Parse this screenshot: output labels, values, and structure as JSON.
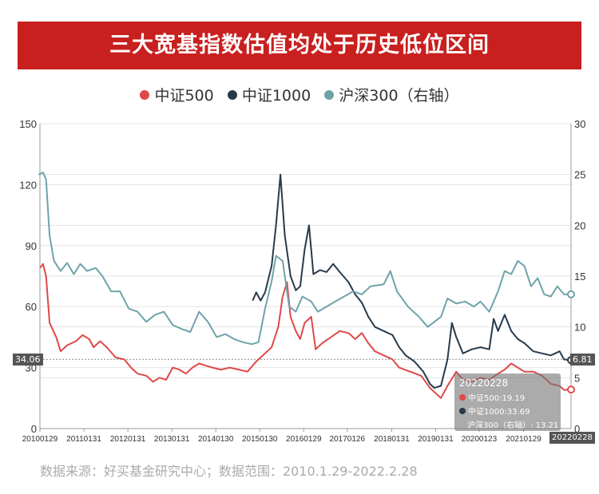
{
  "title": "三大宽基指数估值均处于历史低位区间",
  "source": "数据来源：好买基金研究中心；数据范围：2010.1.29-2022.2.28",
  "colors": {
    "banner": "#c8201f",
    "s1": "#e04848",
    "s2": "#273a4c",
    "s3": "#6ea3aa"
  },
  "tooltip": {
    "date": "20220228",
    "rows": [
      {
        "text": "中证500:19.19",
        "color": "#e04848"
      },
      {
        "text": "中证1000:33.69",
        "color": "#273a4c"
      },
      {
        "text": "沪深300（右轴）: 13.21",
        "color": ""
      }
    ]
  },
  "markers": {
    "left_value": "34.06",
    "right_value": "6.81",
    "x_value": "20220228"
  },
  "chart_data": {
    "type": "line",
    "x_ticks": [
      "20100129",
      "20110131",
      "20120131",
      "20130131",
      "20140130",
      "20150130",
      "20160129",
      "20170126",
      "20180131",
      "20190131",
      "20200123",
      "20210129"
    ],
    "y_left": {
      "min": 0,
      "max": 150,
      "ticks": [
        0,
        30,
        60,
        90,
        120,
        150
      ]
    },
    "y_right": {
      "min": 0,
      "max": 30,
      "ticks": [
        0,
        5,
        10,
        15,
        20,
        25,
        30
      ]
    },
    "grid": true,
    "legend_position": "top-center",
    "series": [
      {
        "name": "中证500",
        "axis": "left",
        "color": "#e04848",
        "points": [
          [
            2010.08,
            79
          ],
          [
            2010.15,
            81
          ],
          [
            2010.22,
            75
          ],
          [
            2010.3,
            52
          ],
          [
            2010.45,
            45
          ],
          [
            2010.55,
            38
          ],
          [
            2010.7,
            41
          ],
          [
            2010.9,
            43
          ],
          [
            2011.05,
            46
          ],
          [
            2011.2,
            44
          ],
          [
            2011.3,
            40
          ],
          [
            2011.45,
            43
          ],
          [
            2011.6,
            40
          ],
          [
            2011.8,
            35
          ],
          [
            2012.0,
            34
          ],
          [
            2012.15,
            30
          ],
          [
            2012.3,
            27
          ],
          [
            2012.5,
            26
          ],
          [
            2012.65,
            23
          ],
          [
            2012.8,
            25
          ],
          [
            2012.95,
            24
          ],
          [
            2013.1,
            30
          ],
          [
            2013.25,
            29
          ],
          [
            2013.4,
            27
          ],
          [
            2013.55,
            30
          ],
          [
            2013.7,
            32
          ],
          [
            2013.85,
            31
          ],
          [
            2014.0,
            30
          ],
          [
            2014.2,
            29
          ],
          [
            2014.4,
            30
          ],
          [
            2014.6,
            29
          ],
          [
            2014.8,
            28
          ],
          [
            2015.0,
            33
          ],
          [
            2015.2,
            37
          ],
          [
            2015.35,
            40
          ],
          [
            2015.5,
            50
          ],
          [
            2015.6,
            65
          ],
          [
            2015.7,
            72
          ],
          [
            2015.78,
            55
          ],
          [
            2015.9,
            48
          ],
          [
            2016.0,
            44
          ],
          [
            2016.1,
            52
          ],
          [
            2016.25,
            55
          ],
          [
            2016.35,
            39
          ],
          [
            2016.5,
            42
          ],
          [
            2016.7,
            45
          ],
          [
            2016.9,
            48
          ],
          [
            2017.1,
            47
          ],
          [
            2017.25,
            44
          ],
          [
            2017.4,
            47
          ],
          [
            2017.55,
            42
          ],
          [
            2017.7,
            38
          ],
          [
            2017.9,
            36
          ],
          [
            2018.1,
            34
          ],
          [
            2018.25,
            30
          ],
          [
            2018.5,
            28
          ],
          [
            2018.75,
            26
          ],
          [
            2018.95,
            20
          ],
          [
            2019.05,
            18
          ],
          [
            2019.2,
            15
          ],
          [
            2019.35,
            21
          ],
          [
            2019.55,
            28
          ],
          [
            2019.7,
            24
          ],
          [
            2019.9,
            23
          ],
          [
            2020.1,
            25
          ],
          [
            2020.3,
            24
          ],
          [
            2020.5,
            27
          ],
          [
            2020.65,
            29
          ],
          [
            2020.8,
            32
          ],
          [
            2020.95,
            30
          ],
          [
            2021.1,
            28
          ],
          [
            2021.3,
            28
          ],
          [
            2021.5,
            26
          ],
          [
            2021.7,
            22
          ],
          [
            2021.9,
            21
          ],
          [
            2022.0,
            19
          ],
          [
            2022.16,
            19.19
          ]
        ]
      },
      {
        "name": "中证1000",
        "axis": "left",
        "color": "#273a4c",
        "points": [
          [
            2014.92,
            63
          ],
          [
            2015.0,
            67
          ],
          [
            2015.1,
            63
          ],
          [
            2015.2,
            67
          ],
          [
            2015.35,
            80
          ],
          [
            2015.45,
            100
          ],
          [
            2015.55,
            125
          ],
          [
            2015.65,
            95
          ],
          [
            2015.78,
            75
          ],
          [
            2015.9,
            68
          ],
          [
            2016.0,
            70
          ],
          [
            2016.1,
            88
          ],
          [
            2016.2,
            100
          ],
          [
            2016.3,
            76
          ],
          [
            2016.45,
            78
          ],
          [
            2016.6,
            77
          ],
          [
            2016.75,
            81
          ],
          [
            2016.9,
            77
          ],
          [
            2017.1,
            72
          ],
          [
            2017.25,
            66
          ],
          [
            2017.4,
            62
          ],
          [
            2017.55,
            55
          ],
          [
            2017.7,
            50
          ],
          [
            2017.9,
            48
          ],
          [
            2018.1,
            46
          ],
          [
            2018.25,
            40
          ],
          [
            2018.4,
            36
          ],
          [
            2018.6,
            33
          ],
          [
            2018.8,
            28
          ],
          [
            2018.95,
            22
          ],
          [
            2019.05,
            20
          ],
          [
            2019.2,
            21
          ],
          [
            2019.35,
            34
          ],
          [
            2019.45,
            52
          ],
          [
            2019.55,
            45
          ],
          [
            2019.7,
            37
          ],
          [
            2019.9,
            39
          ],
          [
            2020.1,
            40
          ],
          [
            2020.3,
            39
          ],
          [
            2020.4,
            54
          ],
          [
            2020.5,
            48
          ],
          [
            2020.65,
            56
          ],
          [
            2020.8,
            48
          ],
          [
            2020.95,
            44
          ],
          [
            2021.1,
            42
          ],
          [
            2021.3,
            38
          ],
          [
            2021.5,
            37
          ],
          [
            2021.7,
            36
          ],
          [
            2021.9,
            38
          ],
          [
            2022.0,
            34
          ],
          [
            2022.16,
            33.69
          ]
        ]
      },
      {
        "name": "沪深300（右轴）",
        "axis": "right",
        "color": "#6ea3aa",
        "points": [
          [
            2010.05,
            25
          ],
          [
            2010.15,
            25.2
          ],
          [
            2010.22,
            24.5
          ],
          [
            2010.3,
            19
          ],
          [
            2010.4,
            16.5
          ],
          [
            2010.55,
            15.5
          ],
          [
            2010.7,
            16.3
          ],
          [
            2010.85,
            15.2
          ],
          [
            2011.0,
            16.2
          ],
          [
            2011.15,
            15.5
          ],
          [
            2011.35,
            15.8
          ],
          [
            2011.5,
            15.0
          ],
          [
            2011.7,
            13.5
          ],
          [
            2011.9,
            13.5
          ],
          [
            2012.1,
            11.8
          ],
          [
            2012.3,
            11.5
          ],
          [
            2012.5,
            10.5
          ],
          [
            2012.7,
            11.2
          ],
          [
            2012.9,
            11.5
          ],
          [
            2013.1,
            10.2
          ],
          [
            2013.3,
            9.8
          ],
          [
            2013.5,
            9.5
          ],
          [
            2013.7,
            11.5
          ],
          [
            2013.9,
            10.5
          ],
          [
            2014.1,
            9.0
          ],
          [
            2014.3,
            9.3
          ],
          [
            2014.5,
            8.8
          ],
          [
            2014.7,
            8.5
          ],
          [
            2014.9,
            8.3
          ],
          [
            2015.05,
            8.5
          ],
          [
            2015.2,
            11.8
          ],
          [
            2015.35,
            14.5
          ],
          [
            2015.45,
            17.0
          ],
          [
            2015.6,
            16.5
          ],
          [
            2015.75,
            12.0
          ],
          [
            2015.9,
            11.5
          ],
          [
            2016.05,
            13.0
          ],
          [
            2016.25,
            12.5
          ],
          [
            2016.4,
            11.5
          ],
          [
            2016.6,
            12.0
          ],
          [
            2016.8,
            12.5
          ],
          [
            2017.0,
            13.0
          ],
          [
            2017.2,
            13.5
          ],
          [
            2017.4,
            13.2
          ],
          [
            2017.6,
            14.0
          ],
          [
            2017.9,
            14.2
          ],
          [
            2018.05,
            15.5
          ],
          [
            2018.2,
            13.5
          ],
          [
            2018.45,
            12.0
          ],
          [
            2018.7,
            11.0
          ],
          [
            2018.9,
            10.0
          ],
          [
            2019.05,
            10.5
          ],
          [
            2019.2,
            11.0
          ],
          [
            2019.35,
            12.8
          ],
          [
            2019.55,
            12.3
          ],
          [
            2019.75,
            12.5
          ],
          [
            2019.95,
            12.0
          ],
          [
            2020.1,
            12.5
          ],
          [
            2020.3,
            11.5
          ],
          [
            2020.5,
            13.5
          ],
          [
            2020.65,
            15.5
          ],
          [
            2020.8,
            15.2
          ],
          [
            2020.95,
            16.5
          ],
          [
            2021.1,
            16.0
          ],
          [
            2021.25,
            14.0
          ],
          [
            2021.4,
            14.8
          ],
          [
            2021.55,
            13.2
          ],
          [
            2021.7,
            13.0
          ],
          [
            2021.85,
            14.0
          ],
          [
            2022.0,
            13.2
          ],
          [
            2022.16,
            13.21
          ]
        ]
      }
    ]
  }
}
